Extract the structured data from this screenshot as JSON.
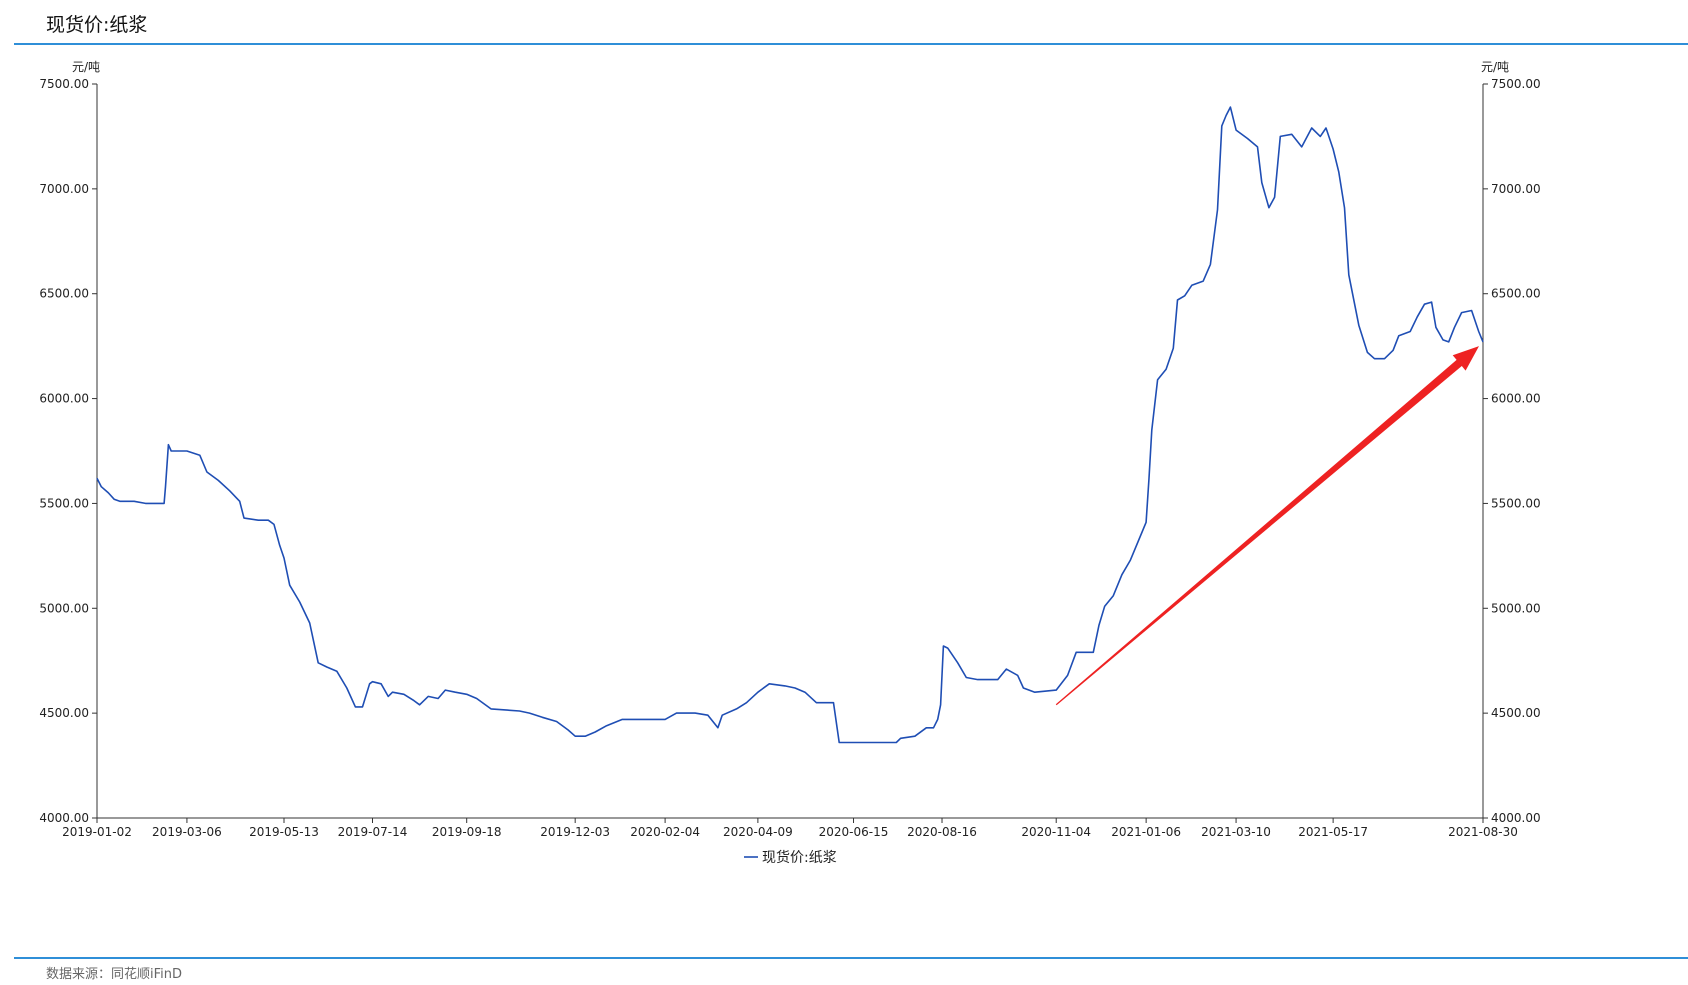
{
  "header": {
    "title": "现货价:纸浆"
  },
  "footer": {
    "source": "数据来源：同花顺iFinD"
  },
  "colors": {
    "line": "#1f4eb4",
    "accent_rule": "#2f8fd8",
    "arrow": "#ee2222"
  },
  "chart_data": {
    "type": "line",
    "title": "现货价:纸浆",
    "xlabel": "",
    "ylabel_left": "元/吨",
    "ylabel_right": "元/吨",
    "ylim": [
      4000,
      7500
    ],
    "xlim": [
      "2019-01-02",
      "2021-08-30"
    ],
    "yticks": [
      "4000.00",
      "4500.00",
      "5000.00",
      "5500.00",
      "6000.00",
      "6500.00",
      "7000.00",
      "7500.00"
    ],
    "xticks": [
      "2019-01-02",
      "2019-03-06",
      "2019-05-13",
      "2019-07-14",
      "2019-09-18",
      "2019-12-03",
      "2020-02-04",
      "2020-04-09",
      "2020-06-15",
      "2020-08-16",
      "2020-11-04",
      "2021-01-06",
      "2021-03-10",
      "2021-05-17",
      "2021-08-30"
    ],
    "grid": false,
    "legend": {
      "position": "bottom-center",
      "entries": [
        "现货价:纸浆"
      ]
    },
    "series": [
      {
        "name": "现货价:纸浆",
        "points": [
          [
            "2019-01-02",
            5620
          ],
          [
            "2019-01-05",
            5580
          ],
          [
            "2019-01-10",
            5550
          ],
          [
            "2019-01-14",
            5520
          ],
          [
            "2019-01-18",
            5510
          ],
          [
            "2019-01-28",
            5510
          ],
          [
            "2019-02-05",
            5500
          ],
          [
            "2019-02-18",
            5500
          ],
          [
            "2019-02-19",
            5580
          ],
          [
            "2019-02-21",
            5780
          ],
          [
            "2019-02-23",
            5750
          ],
          [
            "2019-03-06",
            5750
          ],
          [
            "2019-03-15",
            5730
          ],
          [
            "2019-03-20",
            5650
          ],
          [
            "2019-03-28",
            5610
          ],
          [
            "2019-04-05",
            5560
          ],
          [
            "2019-04-12",
            5510
          ],
          [
            "2019-04-15",
            5430
          ],
          [
            "2019-04-25",
            5420
          ],
          [
            "2019-05-02",
            5420
          ],
          [
            "2019-05-06",
            5400
          ],
          [
            "2019-05-10",
            5300
          ],
          [
            "2019-05-13",
            5240
          ],
          [
            "2019-05-17",
            5110
          ],
          [
            "2019-05-24",
            5030
          ],
          [
            "2019-05-31",
            4930
          ],
          [
            "2019-06-06",
            4740
          ],
          [
            "2019-06-12",
            4720
          ],
          [
            "2019-06-19",
            4700
          ],
          [
            "2019-06-26",
            4620
          ],
          [
            "2019-07-02",
            4530
          ],
          [
            "2019-07-07",
            4530
          ],
          [
            "2019-07-12",
            4640
          ],
          [
            "2019-07-14",
            4650
          ],
          [
            "2019-07-20",
            4640
          ],
          [
            "2019-07-25",
            4580
          ],
          [
            "2019-07-28",
            4600
          ],
          [
            "2019-08-05",
            4590
          ],
          [
            "2019-08-12",
            4560
          ],
          [
            "2019-08-16",
            4540
          ],
          [
            "2019-08-22",
            4580
          ],
          [
            "2019-08-29",
            4570
          ],
          [
            "2019-09-03",
            4610
          ],
          [
            "2019-09-10",
            4600
          ],
          [
            "2019-09-18",
            4590
          ],
          [
            "2019-09-25",
            4570
          ],
          [
            "2019-10-05",
            4520
          ],
          [
            "2019-10-25",
            4510
          ],
          [
            "2019-11-01",
            4500
          ],
          [
            "2019-11-10",
            4480
          ],
          [
            "2019-11-20",
            4460
          ],
          [
            "2019-11-28",
            4420
          ],
          [
            "2019-12-03",
            4390
          ],
          [
            "2019-12-10",
            4390
          ],
          [
            "2019-12-17",
            4410
          ],
          [
            "2019-12-25",
            4440
          ],
          [
            "2020-01-05",
            4470
          ],
          [
            "2020-01-20",
            4470
          ],
          [
            "2020-02-04",
            4470
          ],
          [
            "2020-02-12",
            4500
          ],
          [
            "2020-02-25",
            4500
          ],
          [
            "2020-03-05",
            4490
          ],
          [
            "2020-03-12",
            4430
          ],
          [
            "2020-03-15",
            4490
          ],
          [
            "2020-03-25",
            4520
          ],
          [
            "2020-04-01",
            4550
          ],
          [
            "2020-04-09",
            4600
          ],
          [
            "2020-04-17",
            4640
          ],
          [
            "2020-04-28",
            4630
          ],
          [
            "2020-05-05",
            4620
          ],
          [
            "2020-05-12",
            4600
          ],
          [
            "2020-05-20",
            4550
          ],
          [
            "2020-06-01",
            4550
          ],
          [
            "2020-06-05",
            4360
          ],
          [
            "2020-06-15",
            4360
          ],
          [
            "2020-07-15",
            4360
          ],
          [
            "2020-07-18",
            4380
          ],
          [
            "2020-07-28",
            4390
          ],
          [
            "2020-08-05",
            4430
          ],
          [
            "2020-08-10",
            4430
          ],
          [
            "2020-08-13",
            4470
          ],
          [
            "2020-08-15",
            4540
          ],
          [
            "2020-08-17",
            4820
          ],
          [
            "2020-08-20",
            4810
          ],
          [
            "2020-08-27",
            4740
          ],
          [
            "2020-09-02",
            4670
          ],
          [
            "2020-09-10",
            4660
          ],
          [
            "2020-09-24",
            4660
          ],
          [
            "2020-09-30",
            4710
          ],
          [
            "2020-10-08",
            4680
          ],
          [
            "2020-10-12",
            4620
          ],
          [
            "2020-10-20",
            4600
          ],
          [
            "2020-11-04",
            4610
          ],
          [
            "2020-11-12",
            4680
          ],
          [
            "2020-11-18",
            4790
          ],
          [
            "2020-11-30",
            4790
          ],
          [
            "2020-12-04",
            4920
          ],
          [
            "2020-12-08",
            5010
          ],
          [
            "2020-12-14",
            5060
          ],
          [
            "2020-12-20",
            5160
          ],
          [
            "2020-12-26",
            5230
          ],
          [
            "2021-01-06",
            5410
          ],
          [
            "2021-01-08",
            5620
          ],
          [
            "2021-01-10",
            5850
          ],
          [
            "2021-01-14",
            6090
          ],
          [
            "2021-01-20",
            6140
          ],
          [
            "2021-01-25",
            6240
          ],
          [
            "2021-01-28",
            6470
          ],
          [
            "2021-02-02",
            6490
          ],
          [
            "2021-02-07",
            6540
          ],
          [
            "2021-02-15",
            6560
          ],
          [
            "2021-02-20",
            6640
          ],
          [
            "2021-02-25",
            6900
          ],
          [
            "2021-02-28",
            7300
          ],
          [
            "2021-03-03",
            7350
          ],
          [
            "2021-03-06",
            7390
          ],
          [
            "2021-03-10",
            7280
          ],
          [
            "2021-03-18",
            7240
          ],
          [
            "2021-03-25",
            7200
          ],
          [
            "2021-03-28",
            7030
          ],
          [
            "2021-04-02",
            6910
          ],
          [
            "2021-04-06",
            6960
          ],
          [
            "2021-04-10",
            7250
          ],
          [
            "2021-04-18",
            7260
          ],
          [
            "2021-04-25",
            7200
          ],
          [
            "2021-05-02",
            7290
          ],
          [
            "2021-05-08",
            7250
          ],
          [
            "2021-05-12",
            7290
          ],
          [
            "2021-05-17",
            7190
          ],
          [
            "2021-05-21",
            7080
          ],
          [
            "2021-05-25",
            6910
          ],
          [
            "2021-05-28",
            6590
          ],
          [
            "2021-06-04",
            6350
          ],
          [
            "2021-06-10",
            6220
          ],
          [
            "2021-06-15",
            6190
          ],
          [
            "2021-06-22",
            6190
          ],
          [
            "2021-06-28",
            6230
          ],
          [
            "2021-07-02",
            6300
          ],
          [
            "2021-07-10",
            6320
          ],
          [
            "2021-07-15",
            6390
          ],
          [
            "2021-07-20",
            6450
          ],
          [
            "2021-07-25",
            6460
          ],
          [
            "2021-07-28",
            6340
          ],
          [
            "2021-08-02",
            6280
          ],
          [
            "2021-08-06",
            6270
          ],
          [
            "2021-08-10",
            6340
          ],
          [
            "2021-08-15",
            6410
          ],
          [
            "2021-08-22",
            6420
          ],
          [
            "2021-08-27",
            6320
          ],
          [
            "2021-08-30",
            6270
          ]
        ]
      }
    ],
    "annotations": [
      {
        "type": "arrow",
        "from": [
          "2020-11-04",
          4540
        ],
        "to": [
          "2021-08-30",
          6250
        ],
        "color": "#ee2222"
      }
    ]
  }
}
